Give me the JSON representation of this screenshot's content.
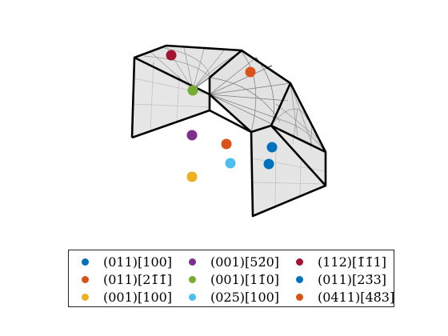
{
  "figure": {
    "legend": [
      {
        "label": "(011)[100]",
        "color": "#0072BD"
      },
      {
        "label": "(011)[21̄1̄]",
        "color": "#D95319"
      },
      {
        "label": "(001)[100]",
        "color": "#EDB120"
      },
      {
        "label": "(001)[52̄0]",
        "color": "#7E2F8E"
      },
      {
        "label": "(001)[11̄0]",
        "color": "#77AC30"
      },
      {
        "label": "(025)[100]",
        "color": "#4DBEEE"
      },
      {
        "label": "(112)[1̄1̄1]",
        "color": "#A2142F"
      },
      {
        "label": "(011)[23̄3]",
        "color": "#0072BD"
      },
      {
        "label": "(0411)[48̄3]",
        "color": "#D95319"
      }
    ]
  }
}
